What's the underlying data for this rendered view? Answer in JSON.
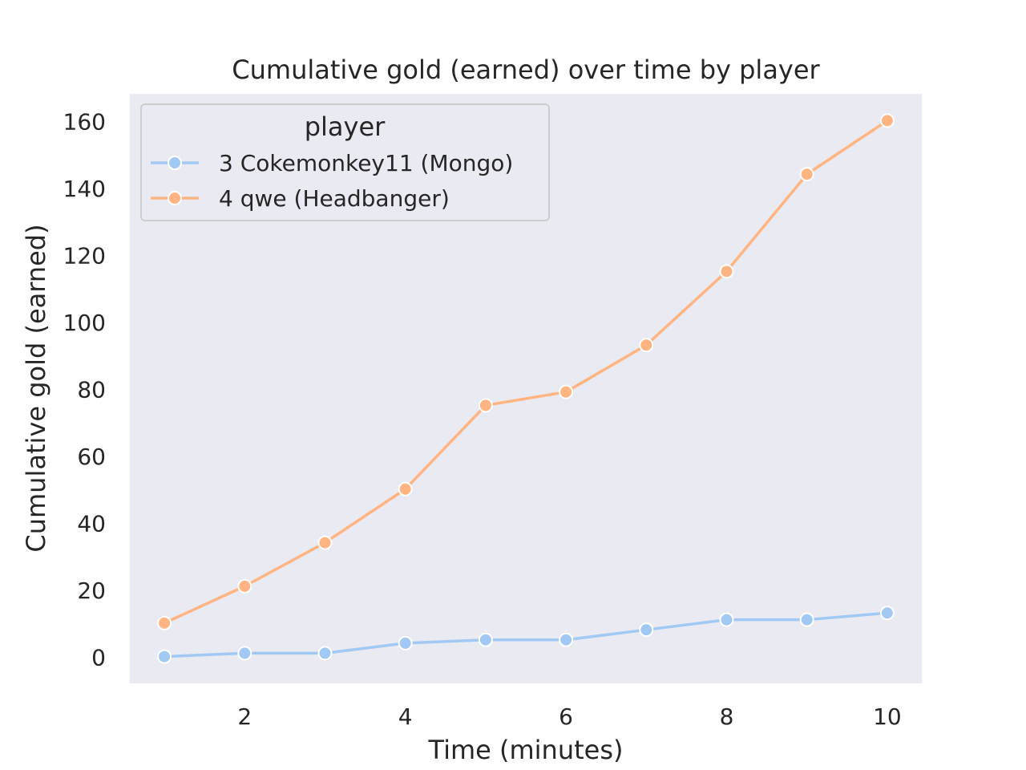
{
  "chart_data": {
    "type": "line",
    "title": "Cumulative gold (earned) over time by player",
    "xlabel": "Time (minutes)",
    "ylabel": "Cumulative gold (earned)",
    "xlim": [
      0.57,
      10.43
    ],
    "ylim": [
      -8,
      168
    ],
    "xticks": [
      2,
      4,
      6,
      8,
      10
    ],
    "yticks": [
      0,
      20,
      40,
      60,
      80,
      100,
      120,
      140,
      160
    ],
    "grid": false,
    "legend": {
      "title": "player",
      "placement": "top-left"
    },
    "x": [
      1,
      2,
      3,
      4,
      5,
      6,
      7,
      8,
      9,
      10
    ],
    "series": [
      {
        "name": "3 Cokemonkey11 (Mongo)",
        "color": "#a1c9f4",
        "values": [
          0,
          1,
          1,
          4,
          5,
          5,
          8,
          11,
          11,
          13
        ]
      },
      {
        "name": "4 qwe (Headbanger)",
        "color": "#ffb482",
        "values": [
          10,
          21,
          34,
          50,
          75,
          79,
          93,
          115,
          144,
          160
        ]
      }
    ],
    "plot_background": "#eaeaf2"
  }
}
